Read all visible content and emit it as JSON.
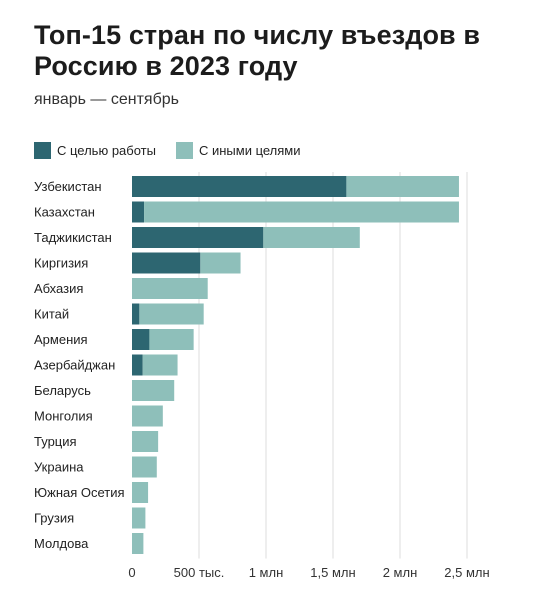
{
  "title": "Топ-15 стран по числу въездов в Россию в 2023 году",
  "subtitle": "январь — сентябрь",
  "colors": {
    "work": "#2d6671",
    "other": "#8ebfba"
  },
  "chart_data": {
    "type": "bar",
    "orientation": "horizontal",
    "stacked": true,
    "categories": [
      "Узбекистан",
      "Казахстан",
      "Таджикистан",
      "Киргизия",
      "Абхазия",
      "Китай",
      "Армения",
      "Азербайджан",
      "Беларусь",
      "Монголия",
      "Турция",
      "Украина",
      "Южная Осетия",
      "Грузия",
      "Молдова"
    ],
    "series": [
      {
        "name": "С целью работы",
        "values": [
          1600000,
          90000,
          980000,
          510000,
          0,
          55000,
          130000,
          80000,
          0,
          0,
          0,
          0,
          0,
          0,
          0
        ]
      },
      {
        "name": "С иными целями",
        "values": [
          840000,
          2350000,
          720000,
          300000,
          565000,
          480000,
          330000,
          260000,
          315000,
          230000,
          195000,
          185000,
          120000,
          100000,
          85000
        ]
      }
    ],
    "xlim": [
      0,
      2500000
    ],
    "xticks": [
      0,
      500000,
      1000000,
      1500000,
      2000000,
      2500000
    ],
    "xtick_labels": [
      "0",
      "500 тыс.",
      "1 млн",
      "1,5 млн",
      "2 млн",
      "2,5 млн"
    ],
    "grid": true,
    "legend_position": "top-left"
  }
}
